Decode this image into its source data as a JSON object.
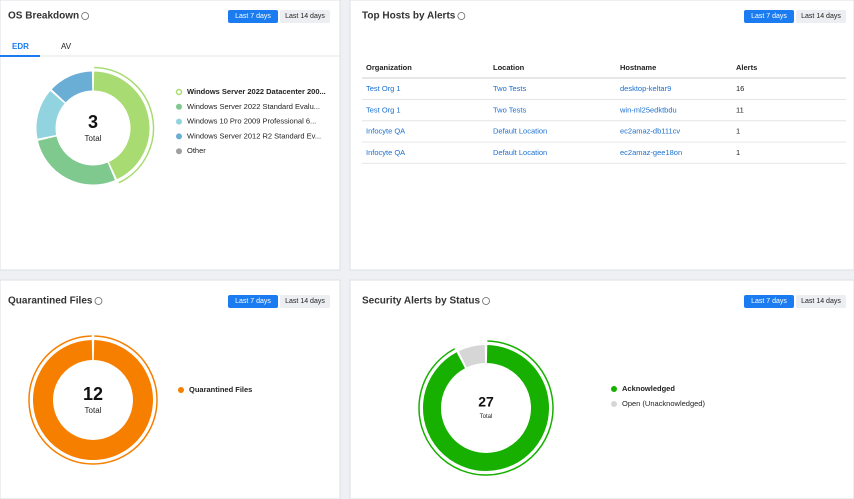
{
  "os_breakdown": {
    "title": "OS Breakdown",
    "buttons": [
      "Last 7 days",
      "Last 14 days"
    ],
    "tabs": [
      "EDR",
      "AV"
    ],
    "total": 3,
    "total_label": "Total",
    "segments": [
      {
        "name": "Windows Server 2022 Datacenter 200...",
        "color": "#a8dc72",
        "value": 1.3
      },
      {
        "name": "Windows Server 2022 Standard Evalu...",
        "color": "#7fc98f",
        "value": 0.85
      },
      {
        "name": "Windows 10 Pro 2009 Professional 6...",
        "color": "#92d3e0",
        "value": 0.45
      },
      {
        "name": "Windows Server 2012 R2 Standard Ev...",
        "color": "#6aaed6",
        "value": 0.4
      },
      {
        "name": "Other",
        "color": "#a0a0a0",
        "value": 0
      }
    ]
  },
  "top_hosts": {
    "title": "Top Hosts by Alerts",
    "buttons": [
      "Last 7 days",
      "Last 14 days"
    ],
    "columns": [
      "Organization",
      "Location",
      "Hostname",
      "Alerts"
    ],
    "rows": [
      [
        "Test Org 1",
        "Two Tests",
        "desktop-keltar9",
        16
      ],
      [
        "Test Org 1",
        "Two Tests",
        "win-ml25edktbdu",
        11
      ],
      [
        "Infocyte QA",
        "Default Location",
        "ec2amaz-db111cv",
        1
      ],
      [
        "Infocyte QA",
        "Default Location",
        "ec2amaz-gee18on",
        1
      ]
    ]
  },
  "quarantined": {
    "title": "Quarantined Files",
    "buttons": [
      "Last 7 days",
      "Last 14 days"
    ],
    "total": 12,
    "total_label": "Total",
    "segments": [
      {
        "name": "Quarantined Files",
        "color": "#f77f00",
        "value": 12
      }
    ]
  },
  "security_alerts": {
    "title": "Security Alerts by Status",
    "buttons": [
      "Last 7 days",
      "Last 14 days"
    ],
    "total": 27,
    "total_label": "Total",
    "segments": [
      {
        "name": "Acknowledged",
        "color": "#17b000",
        "value": 25
      },
      {
        "name": "Open (Unacknowledged)",
        "color": "#d6d6d6",
        "value": 2
      }
    ]
  }
}
